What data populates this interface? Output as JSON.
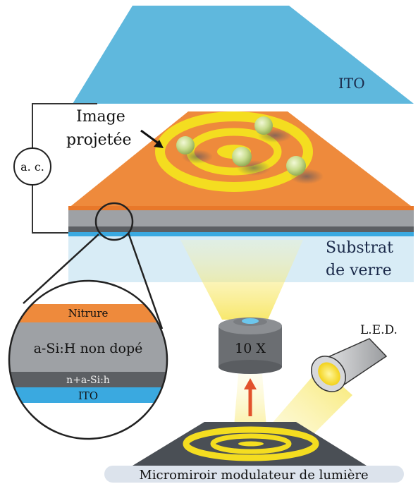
{
  "labels": {
    "top_electrode": "ITO",
    "projected_image_line1": "Image",
    "projected_image_line2": "projetée",
    "ac_source": "a. c.",
    "substrate_line1": "Substrat",
    "substrate_line2": "de verre",
    "lens": "10 X",
    "led": "L.E.D.",
    "dmd": "Micromiroir modulateur de lumière"
  },
  "inset_layers": [
    "Nitrure",
    "a-Si:H non dopé",
    "n+a-Si:h",
    "ITO"
  ],
  "colors": {
    "ito": "#5fb8dd",
    "nitride": "#ee8a3c",
    "asi": "#9ea1a5",
    "nasi": "#5c5f63",
    "substrate": "#d8ecf6",
    "light": "#f6e24a",
    "ring": "#f4dd20",
    "bead": "#c7dc8c",
    "arrow": "#e2522c",
    "dmd": "#4a4f55"
  }
}
